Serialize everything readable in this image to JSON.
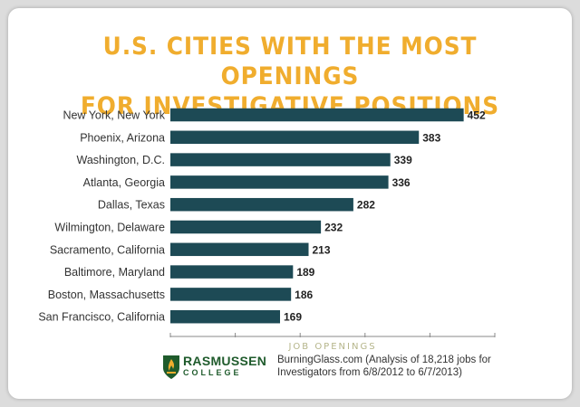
{
  "title_line1": "U.S. CITIES WITH THE MOST OPENINGS",
  "title_line2": "FOR INVESTIGATIVE POSITIONS",
  "chart_data": {
    "type": "bar",
    "orientation": "horizontal",
    "categories": [
      "New York, New York",
      "Phoenix, Arizona",
      "Washington, D.C.",
      "Atlanta, Georgia",
      "Dallas, Texas",
      "Wilmington, Delaware",
      "Sacramento, California",
      "Baltimore, Maryland",
      "Boston, Massachusetts",
      "San Francisco, California"
    ],
    "values": [
      452,
      383,
      339,
      336,
      282,
      232,
      213,
      189,
      186,
      169
    ],
    "xlabel": "JOB OPENINGS",
    "xlim": [
      0,
      500
    ],
    "grid": false,
    "bar_color": "#1d4a55"
  },
  "logo": {
    "name": "RASMUSSEN",
    "sub": "COLLEGE"
  },
  "source_text": "BurningGlass.com (Analysis of 18,218 jobs for Investigators from 6/8/2012 to 6/7/2013)",
  "colors": {
    "title": "#f0ad2e",
    "bar": "#1d4a55",
    "axis_label": "#b5b58a",
    "logo_green": "#1f5b2c",
    "logo_gold": "#f0ad2e"
  }
}
